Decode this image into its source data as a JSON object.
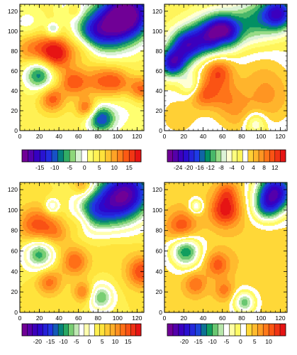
{
  "chart_data": [
    {
      "type": "heatmap",
      "xticks": [
        0,
        20,
        40,
        60,
        80,
        100,
        120
      ],
      "yticks": [
        0,
        20,
        40,
        60,
        80,
        100,
        120
      ],
      "xlim": [
        0,
        127
      ],
      "ylim": [
        0,
        127
      ],
      "colorbar": {
        "levels": [
          -19,
          -17,
          -15,
          -13,
          -11,
          -9,
          -7,
          -5,
          -3,
          -1,
          1,
          3,
          5,
          7,
          9,
          11,
          13,
          15,
          17
        ],
        "labels": [
          -15,
          -10,
          -5,
          0,
          5,
          10,
          15
        ]
      },
      "baseline": 4,
      "features": [
        {
          "x": 112,
          "y": 118,
          "r": 18,
          "v": -22
        },
        {
          "x": 90,
          "y": 104,
          "r": 18,
          "v": -15
        },
        {
          "x": 72,
          "y": 98,
          "r": 12,
          "v": -8
        },
        {
          "x": 20,
          "y": 57,
          "r": 11,
          "v": -13
        },
        {
          "x": 34,
          "y": 102,
          "r": 5,
          "v": -8
        },
        {
          "x": 83,
          "y": 12,
          "r": 10,
          "v": -14
        },
        {
          "x": 8,
          "y": 106,
          "r": 12,
          "v": -5
        },
        {
          "x": 52,
          "y": 125,
          "r": 9,
          "v": -6
        },
        {
          "x": 37,
          "y": 78,
          "r": 12,
          "v": 15
        },
        {
          "x": 12,
          "y": 84,
          "r": 13,
          "v": 8
        },
        {
          "x": 55,
          "y": 49,
          "r": 10,
          "v": 10
        },
        {
          "x": 82,
          "y": 50,
          "r": 12,
          "v": 8
        },
        {
          "x": 100,
          "y": 49,
          "r": 10,
          "v": 8
        },
        {
          "x": 124,
          "y": 42,
          "r": 9,
          "v": 10
        },
        {
          "x": 33,
          "y": 32,
          "r": 9,
          "v": 10
        },
        {
          "x": 68,
          "y": 23,
          "r": 7,
          "v": 10
        },
        {
          "x": 65,
          "y": 84,
          "r": 10,
          "v": 5
        },
        {
          "x": 55,
          "y": 122,
          "r": 6,
          "v": 8
        },
        {
          "x": 108,
          "y": 20,
          "r": 18,
          "v": -3
        }
      ]
    },
    {
      "type": "heatmap",
      "xticks": [
        0,
        20,
        40,
        60,
        80,
        100,
        120
      ],
      "yticks": [
        0,
        20,
        40,
        60,
        80,
        100,
        120
      ],
      "xlim": [
        0,
        127
      ],
      "ylim": [
        0,
        127
      ],
      "colorbar": {
        "levels": [
          -26,
          -24,
          -22,
          -20,
          -18,
          -16,
          -14,
          -12,
          -10,
          -8,
          -6,
          -4,
          -2,
          0,
          2,
          4,
          6,
          8,
          10,
          12,
          14
        ],
        "labels": [
          -24,
          -20,
          -16,
          -12,
          -8,
          -4,
          0,
          4,
          8,
          12
        ]
      },
      "baseline": -1,
      "features": [
        {
          "x": 8,
          "y": 68,
          "r": 10,
          "v": -20
        },
        {
          "x": 22,
          "y": 86,
          "r": 12,
          "v": -18
        },
        {
          "x": 45,
          "y": 95,
          "r": 14,
          "v": -16
        },
        {
          "x": 62,
          "y": 100,
          "r": 12,
          "v": -20
        },
        {
          "x": 92,
          "y": 110,
          "r": 16,
          "v": -10
        },
        {
          "x": 118,
          "y": 118,
          "r": 12,
          "v": -20
        },
        {
          "x": 28,
          "y": 45,
          "r": 8,
          "v": -8
        },
        {
          "x": 94,
          "y": 8,
          "r": 8,
          "v": -8
        },
        {
          "x": 55,
          "y": 60,
          "r": 11,
          "v": 12
        },
        {
          "x": 40,
          "y": 38,
          "r": 10,
          "v": 10
        },
        {
          "x": 62,
          "y": 35,
          "r": 12,
          "v": 6
        },
        {
          "x": 100,
          "y": 55,
          "r": 22,
          "v": 4
        },
        {
          "x": 110,
          "y": 30,
          "r": 20,
          "v": 5
        },
        {
          "x": 75,
          "y": 15,
          "r": 15,
          "v": 5
        },
        {
          "x": 15,
          "y": 15,
          "r": 20,
          "v": 4
        },
        {
          "x": 60,
          "y": 90,
          "r": 6,
          "v": 5
        }
      ]
    },
    {
      "type": "heatmap",
      "xticks": [
        0,
        20,
        40,
        60,
        80,
        100,
        120
      ],
      "yticks": [
        0,
        20,
        40,
        60,
        80,
        100,
        120
      ],
      "xlim": [
        0,
        127
      ],
      "ylim": [
        0,
        127
      ],
      "colorbar": {
        "levels": [
          -24,
          -22,
          -20,
          -18,
          -16,
          -14,
          -12,
          -10,
          -8,
          -6,
          -4,
          -2,
          0,
          2,
          4,
          6,
          8,
          10,
          12,
          14,
          16,
          18
        ],
        "labels": [
          -20,
          -15,
          -10,
          -5,
          0,
          5,
          10,
          15
        ]
      },
      "baseline": 4,
      "features": [
        {
          "x": 112,
          "y": 118,
          "r": 18,
          "v": -22
        },
        {
          "x": 90,
          "y": 104,
          "r": 18,
          "v": -15
        },
        {
          "x": 72,
          "y": 98,
          "r": 12,
          "v": -8
        },
        {
          "x": 20,
          "y": 58,
          "r": 11,
          "v": -14
        },
        {
          "x": 33,
          "y": 104,
          "r": 5,
          "v": -9
        },
        {
          "x": 83,
          "y": 15,
          "r": 9,
          "v": -12
        },
        {
          "x": 17,
          "y": 85,
          "r": 13,
          "v": 11
        },
        {
          "x": 37,
          "y": 78,
          "r": 10,
          "v": 6
        },
        {
          "x": 56,
          "y": 50,
          "r": 10,
          "v": 10
        },
        {
          "x": 125,
          "y": 40,
          "r": 11,
          "v": 12
        },
        {
          "x": 30,
          "y": 30,
          "r": 9,
          "v": 9
        },
        {
          "x": 65,
          "y": 20,
          "r": 7,
          "v": 9
        },
        {
          "x": 65,
          "y": 124,
          "r": 7,
          "v": 8
        },
        {
          "x": 63,
          "y": 90,
          "r": 8,
          "v": 5
        },
        {
          "x": 95,
          "y": 70,
          "r": 15,
          "v": 2
        }
      ]
    },
    {
      "type": "heatmap",
      "xticks": [
        0,
        20,
        40,
        60,
        80,
        100,
        120
      ],
      "yticks": [
        0,
        20,
        40,
        60,
        80,
        100,
        120
      ],
      "xlim": [
        0,
        127
      ],
      "ylim": [
        0,
        127
      ],
      "colorbar": {
        "levels": [
          -24,
          -22,
          -20,
          -18,
          -16,
          -14,
          -12,
          -10,
          -8,
          -6,
          -4,
          -2,
          0,
          2,
          4,
          6,
          8,
          10,
          12,
          14
        ],
        "labels": [
          -20,
          -15,
          -10,
          -5,
          0,
          5,
          10
        ]
      },
      "baseline": 3,
      "features": [
        {
          "x": 115,
          "y": 118,
          "r": 14,
          "v": -24
        },
        {
          "x": 105,
          "y": 102,
          "r": 10,
          "v": -10
        },
        {
          "x": 22,
          "y": 60,
          "r": 11,
          "v": -15
        },
        {
          "x": 33,
          "y": 104,
          "r": 5,
          "v": -9
        },
        {
          "x": 83,
          "y": 10,
          "r": 8,
          "v": -12
        },
        {
          "x": 63,
          "y": 100,
          "r": 11,
          "v": 12
        },
        {
          "x": 65,
          "y": 118,
          "r": 8,
          "v": 6
        },
        {
          "x": 18,
          "y": 84,
          "r": 11,
          "v": 9
        },
        {
          "x": 55,
          "y": 47,
          "r": 9,
          "v": 8
        },
        {
          "x": 32,
          "y": 28,
          "r": 8,
          "v": 7
        },
        {
          "x": 62,
          "y": 22,
          "r": 7,
          "v": 6
        },
        {
          "x": 95,
          "y": 60,
          "r": 20,
          "v": 1
        }
      ]
    }
  ]
}
